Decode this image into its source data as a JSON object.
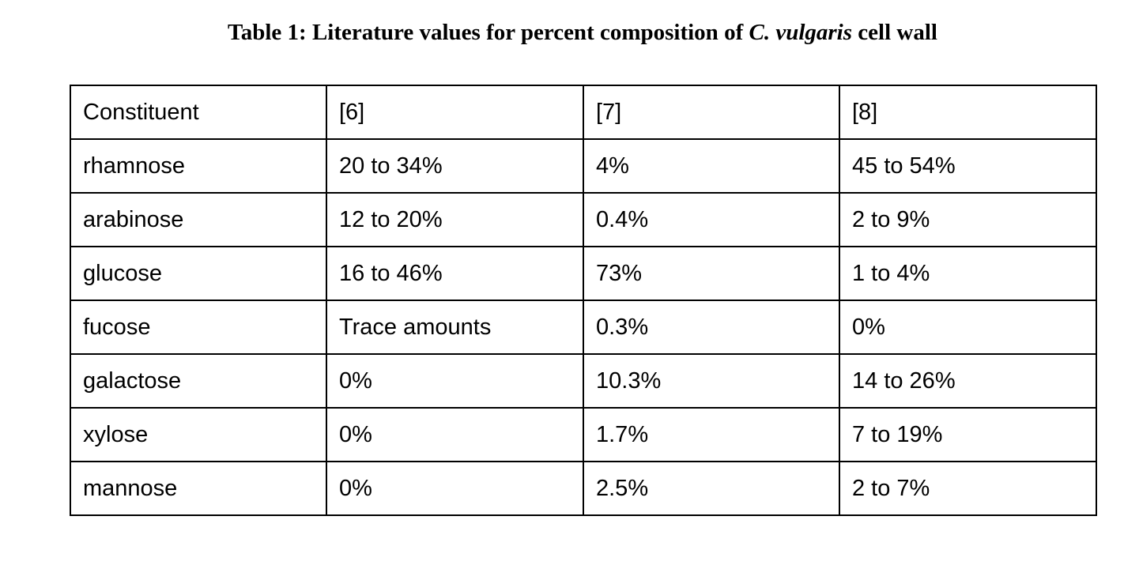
{
  "caption": {
    "prefix": "Table 1: Literature values for percent composition of ",
    "species": "C. vulgaris",
    "suffix": " cell wall"
  },
  "table": {
    "headers": [
      "Constituent",
      "[6]",
      "[7]",
      "[8]"
    ],
    "rows": [
      [
        "rhamnose",
        "20 to 34%",
        "4%",
        "45 to 54%"
      ],
      [
        "arabinose",
        "12 to 20%",
        "0.4%",
        "2 to 9%"
      ],
      [
        "glucose",
        "16 to 46%",
        "73%",
        "1 to 4%"
      ],
      [
        "fucose",
        "Trace amounts",
        "0.3%",
        "0%"
      ],
      [
        "galactose",
        "0%",
        "10.3%",
        "14 to 26%"
      ],
      [
        "xylose",
        "0%",
        "1.7%",
        "7 to 19%"
      ],
      [
        "mannose",
        "0%",
        "2.5%",
        "2 to 7%"
      ]
    ]
  }
}
